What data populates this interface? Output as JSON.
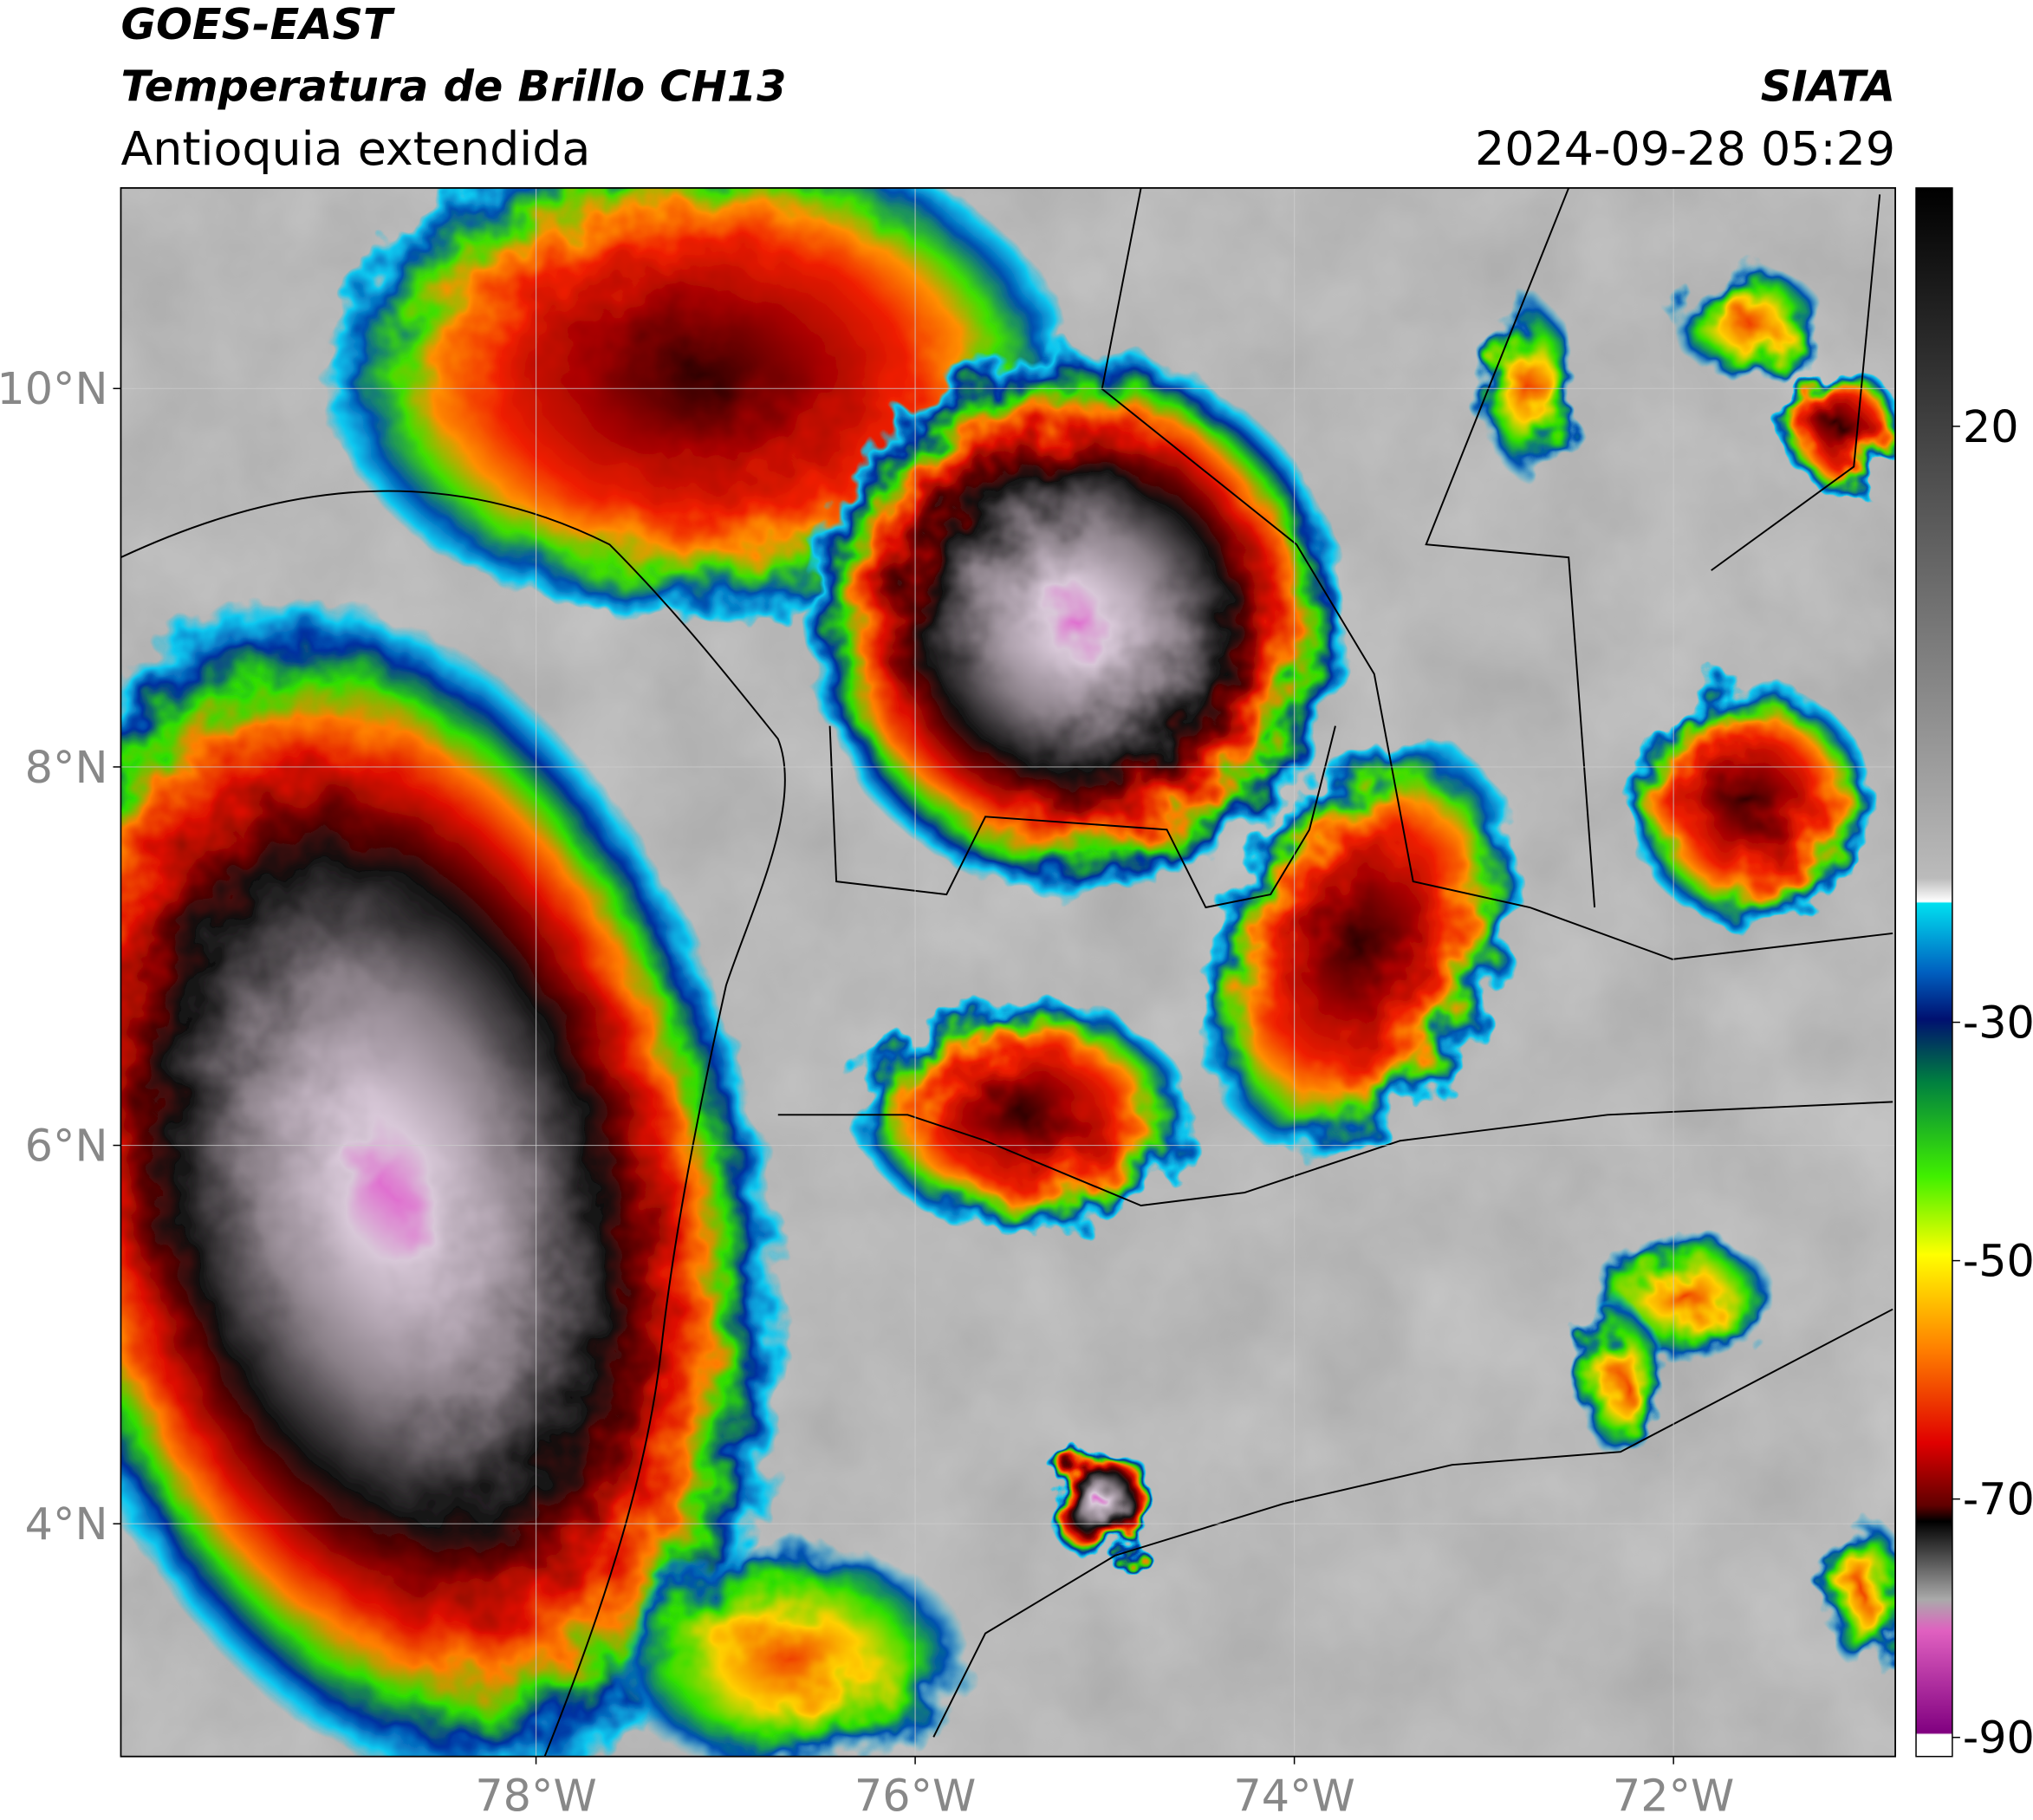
{
  "header": {
    "satellite": "GOES-EAST",
    "product": "Temperatura de Brillo CH13",
    "region": "Antioquia extendida",
    "agency": "SIATA",
    "datetime": "2024-09-28 05:29"
  },
  "map": {
    "lonlim": [
      -80.19,
      -70.83
    ],
    "latlim": [
      2.77,
      11.06
    ],
    "lat_ticks": [
      {
        "value": 10,
        "label": "10°N"
      },
      {
        "value": 8,
        "label": "8°N"
      },
      {
        "value": 6,
        "label": "6°N"
      },
      {
        "value": 4,
        "label": "4°N"
      }
    ],
    "lon_ticks": [
      {
        "value": -78,
        "label": "78°W"
      },
      {
        "value": -76,
        "label": "76°W"
      },
      {
        "value": -74,
        "label": "74°W"
      },
      {
        "value": -72,
        "label": "72°W"
      }
    ]
  },
  "colorbar": {
    "lim": [
      -91.6,
      40
    ],
    "ticks": [
      20,
      -30,
      -50,
      -70,
      -90
    ]
  }
}
